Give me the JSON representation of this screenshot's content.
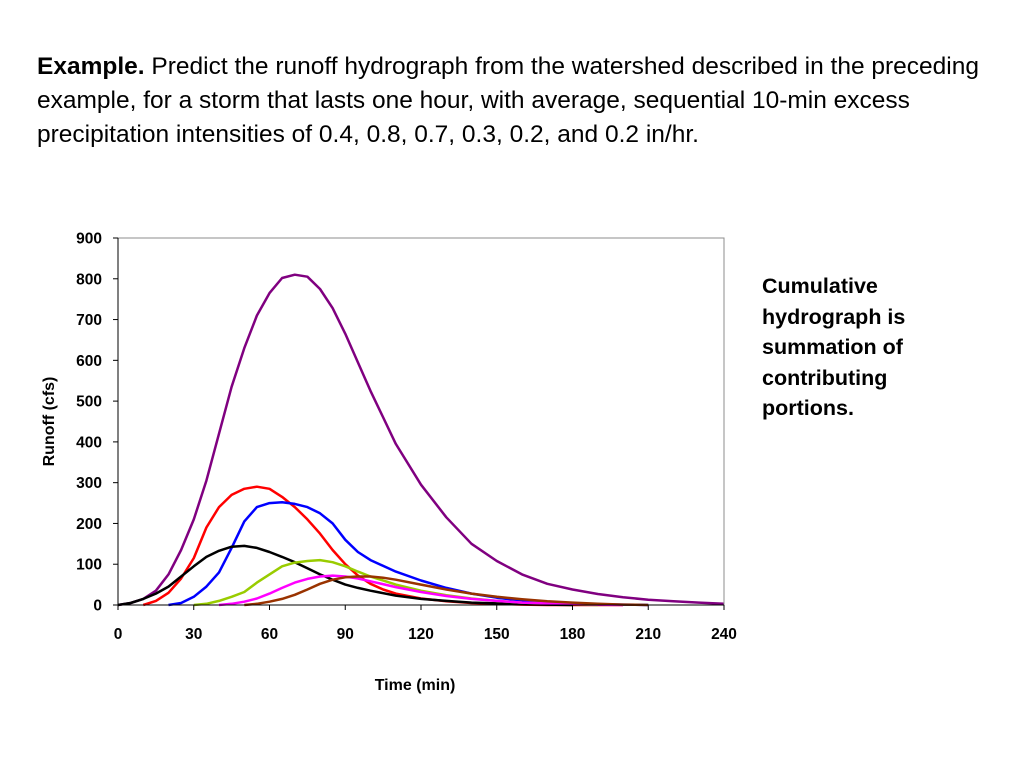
{
  "problem": {
    "lead": "Example.",
    "text": "Predict the runoff hydrograph from the watershed described in the preceding example, for a storm that lasts one hour, with average, sequential 10-min excess precipitation intensities of 0.4, 0.8, 0.7, 0.3, 0.2, and 0.2 in/hr."
  },
  "note": "Cumulative\nhydrograph is\nsummation of\ncontributing\nportions.",
  "chart_data": {
    "type": "line",
    "title": "",
    "xlabel": "Time (min)",
    "ylabel": "Runoff (cfs)",
    "xlim": [
      0,
      240
    ],
    "ylim": [
      0,
      900
    ],
    "xticks": [
      0,
      30,
      60,
      90,
      120,
      150,
      180,
      210,
      240
    ],
    "yticks": [
      0,
      100,
      200,
      300,
      400,
      500,
      600,
      700,
      800,
      900
    ],
    "grid": false,
    "legend": "none",
    "series": [
      {
        "color": "#800080",
        "x": [
          0,
          5,
          10,
          15,
          20,
          25,
          30,
          35,
          40,
          45,
          50,
          55,
          60,
          65,
          70,
          75,
          80,
          85,
          90,
          95,
          100,
          110,
          120,
          130,
          140,
          150,
          160,
          170,
          180,
          190,
          200,
          210,
          220,
          230,
          240
        ],
        "y": [
          0,
          5,
          15,
          35,
          75,
          135,
          210,
          305,
          420,
          535,
          630,
          710,
          765,
          802,
          810,
          805,
          775,
          728,
          665,
          595,
          525,
          395,
          295,
          215,
          150,
          108,
          75,
          52,
          38,
          27,
          19,
          13,
          9,
          6,
          3
        ]
      },
      {
        "color": "#ff0000",
        "x": [
          10,
          15,
          20,
          25,
          30,
          35,
          40,
          45,
          50,
          55,
          60,
          65,
          70,
          75,
          80,
          85,
          90,
          95,
          100,
          105,
          110,
          120,
          130,
          140,
          150,
          160,
          170,
          180,
          190,
          200
        ],
        "y": [
          0,
          10,
          30,
          65,
          115,
          190,
          240,
          270,
          285,
          290,
          285,
          265,
          240,
          210,
          175,
          135,
          100,
          72,
          52,
          38,
          28,
          16,
          9,
          5,
          3,
          1,
          0,
          0,
          0,
          0
        ]
      },
      {
        "color": "#0000ff",
        "x": [
          20,
          25,
          30,
          35,
          40,
          45,
          50,
          55,
          60,
          65,
          70,
          75,
          80,
          85,
          90,
          95,
          100,
          110,
          120,
          130,
          140,
          150,
          160,
          170,
          180,
          190,
          200,
          210
        ],
        "y": [
          0,
          5,
          20,
          45,
          80,
          140,
          205,
          240,
          250,
          252,
          248,
          240,
          225,
          200,
          160,
          130,
          110,
          82,
          60,
          42,
          28,
          18,
          11,
          7,
          4,
          2,
          1,
          0
        ]
      },
      {
        "color": "#000000",
        "x": [
          0,
          5,
          10,
          15,
          20,
          25,
          30,
          35,
          40,
          45,
          50,
          55,
          60,
          65,
          70,
          75,
          80,
          85,
          90,
          95,
          100,
          110,
          120,
          130,
          140,
          150,
          160,
          170,
          180
        ],
        "y": [
          0,
          5,
          15,
          28,
          45,
          70,
          95,
          118,
          133,
          143,
          145,
          140,
          130,
          118,
          105,
          90,
          75,
          62,
          50,
          42,
          35,
          23,
          15,
          10,
          6,
          4,
          2,
          1,
          0
        ]
      },
      {
        "color": "#99cc00",
        "x": [
          30,
          35,
          40,
          45,
          50,
          55,
          60,
          65,
          70,
          75,
          80,
          85,
          90,
          95,
          100,
          110,
          120,
          130,
          140,
          150,
          160,
          170,
          180,
          190
        ],
        "y": [
          0,
          3,
          10,
          20,
          32,
          55,
          75,
          95,
          104,
          108,
          110,
          105,
          95,
          82,
          70,
          50,
          35,
          24,
          16,
          10,
          6,
          4,
          2,
          0
        ]
      },
      {
        "color": "#ff00ff",
        "x": [
          40,
          45,
          50,
          55,
          60,
          65,
          70,
          75,
          80,
          85,
          90,
          95,
          100,
          110,
          120,
          130,
          140,
          150,
          160,
          170,
          180,
          190,
          200
        ],
        "y": [
          0,
          3,
          8,
          16,
          28,
          42,
          55,
          64,
          70,
          72,
          70,
          65,
          58,
          44,
          32,
          22,
          15,
          10,
          6,
          4,
          2,
          1,
          0
        ]
      },
      {
        "color": "#993300",
        "x": [
          50,
          55,
          60,
          65,
          70,
          75,
          80,
          85,
          90,
          95,
          100,
          105,
          110,
          120,
          130,
          140,
          150,
          160,
          170,
          180,
          190,
          200,
          210
        ],
        "y": [
          0,
          3,
          8,
          15,
          25,
          38,
          52,
          62,
          68,
          70,
          70,
          67,
          62,
          50,
          38,
          28,
          20,
          14,
          9,
          6,
          3,
          1,
          0
        ]
      }
    ]
  }
}
